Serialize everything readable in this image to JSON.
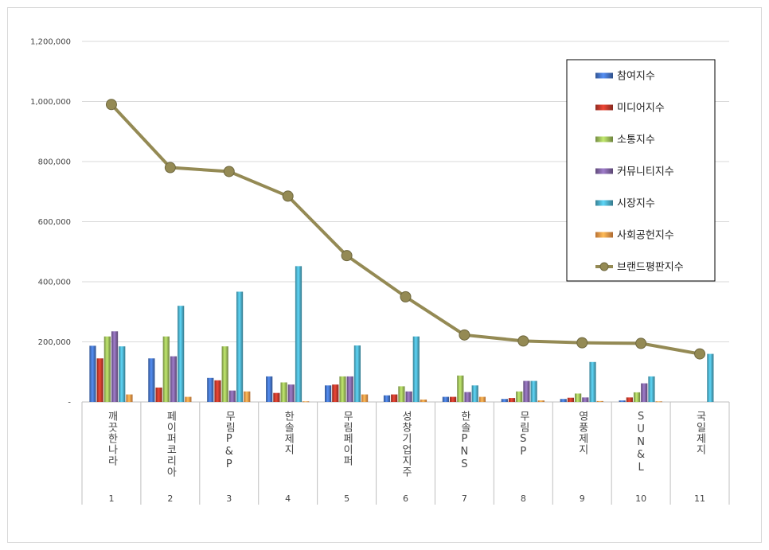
{
  "chart_data": {
    "type": "bar",
    "title": "",
    "xlabel": "",
    "ylabel": "",
    "ylim": [
      0,
      1200000
    ],
    "ytick_labels": [
      "-",
      "200,000",
      "400,000",
      "600,000",
      "800,000",
      "1,000,000",
      "1,200,000"
    ],
    "yticks": [
      0,
      200000,
      400000,
      600000,
      800000,
      1000000,
      1200000
    ],
    "grid": true,
    "legend_position": "top-right",
    "categories": [
      "깨끗한나라",
      "페이퍼코리아",
      "무림P&P",
      "한솔제지",
      "무림페이퍼",
      "성창기업지주",
      "한솔PNS",
      "무림SP",
      "영풍제지",
      "SUN&L",
      "국일제지"
    ],
    "category_index": [
      "1",
      "2",
      "3",
      "4",
      "5",
      "6",
      "7",
      "8",
      "9",
      "10",
      "11"
    ],
    "series": [
      {
        "name": "참여지수",
        "kind": "bar",
        "color": "#4472c4",
        "values": [
          187000,
          145000,
          80000,
          85000,
          55000,
          22000,
          17000,
          10000,
          10000,
          5000,
          0
        ]
      },
      {
        "name": "미디어지수",
        "kind": "bar",
        "color": "#c0392b",
        "values": [
          145000,
          48000,
          72000,
          30000,
          58000,
          25000,
          17000,
          13000,
          14000,
          15000,
          0
        ]
      },
      {
        "name": "소통지수",
        "kind": "bar",
        "color": "#9bbb59",
        "values": [
          218000,
          218000,
          185000,
          65000,
          85000,
          52000,
          88000,
          35000,
          28000,
          32000,
          0
        ]
      },
      {
        "name": "커뮤니티지수",
        "kind": "bar",
        "color": "#8064a2",
        "values": [
          235000,
          152000,
          38000,
          58000,
          85000,
          35000,
          33000,
          70000,
          15000,
          62000,
          0
        ]
      },
      {
        "name": "시장지수",
        "kind": "bar",
        "color": "#4bacc6",
        "values": [
          185000,
          320000,
          367000,
          452000,
          188000,
          218000,
          55000,
          70000,
          133000,
          85000,
          160000
        ]
      },
      {
        "name": "사회공헌지수",
        "kind": "bar",
        "color": "#f79646",
        "values": [
          25000,
          17000,
          35000,
          2000,
          25000,
          8000,
          17000,
          5000,
          3000,
          2000,
          0
        ]
      },
      {
        "name": "브랜드평판지수",
        "kind": "line",
        "color": "#948a54",
        "values": [
          990000,
          780000,
          767000,
          685000,
          487000,
          350000,
          223000,
          203000,
          197000,
          195000,
          160000
        ]
      }
    ]
  }
}
